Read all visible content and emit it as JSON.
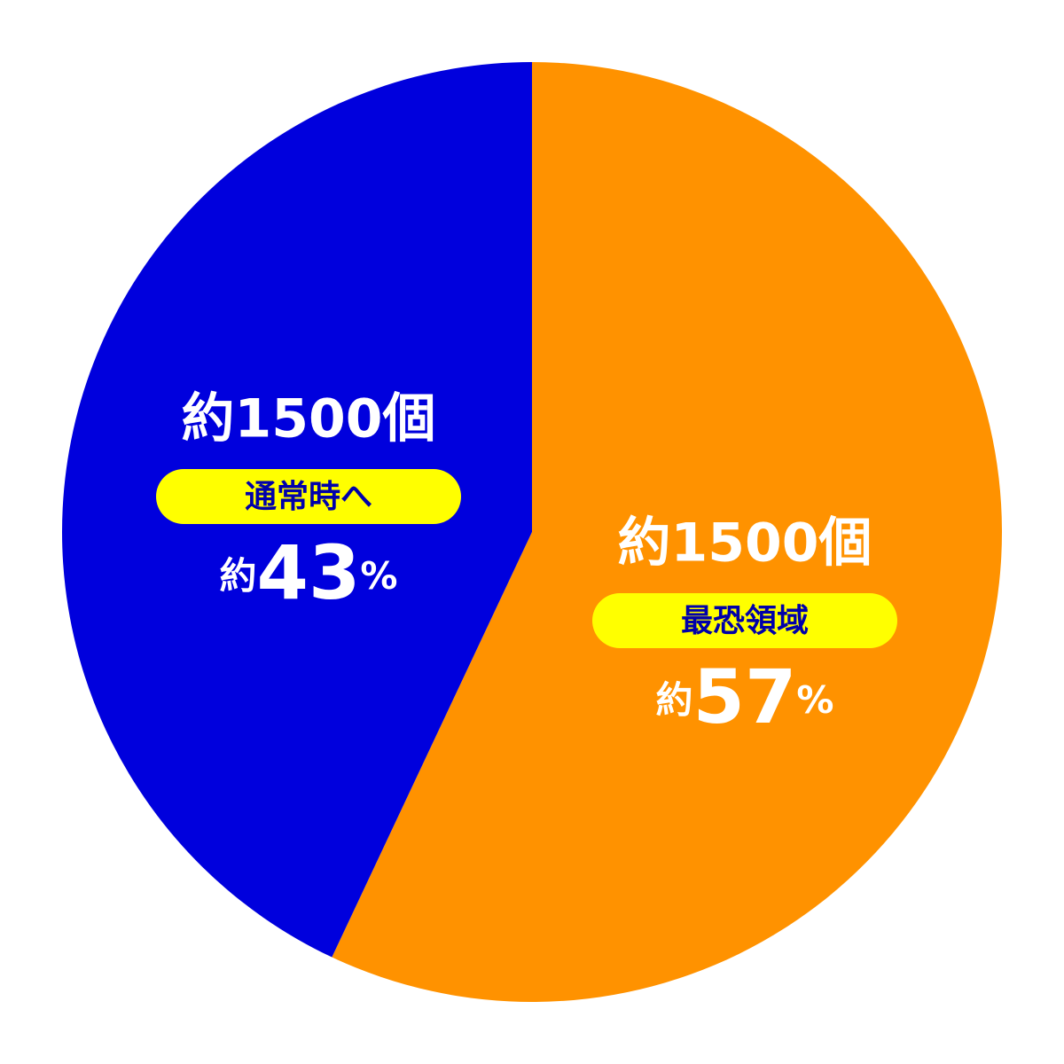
{
  "chart_data": {
    "type": "pie",
    "categories": [
      "最恐領域",
      "通常時へ"
    ],
    "values": [
      57,
      43
    ],
    "value_labels": [
      "約57%",
      "約43%"
    ],
    "count_labels": [
      "約1500個",
      "約1500個"
    ],
    "colors": [
      "#ff9200",
      "#0000dd"
    ]
  }
}
